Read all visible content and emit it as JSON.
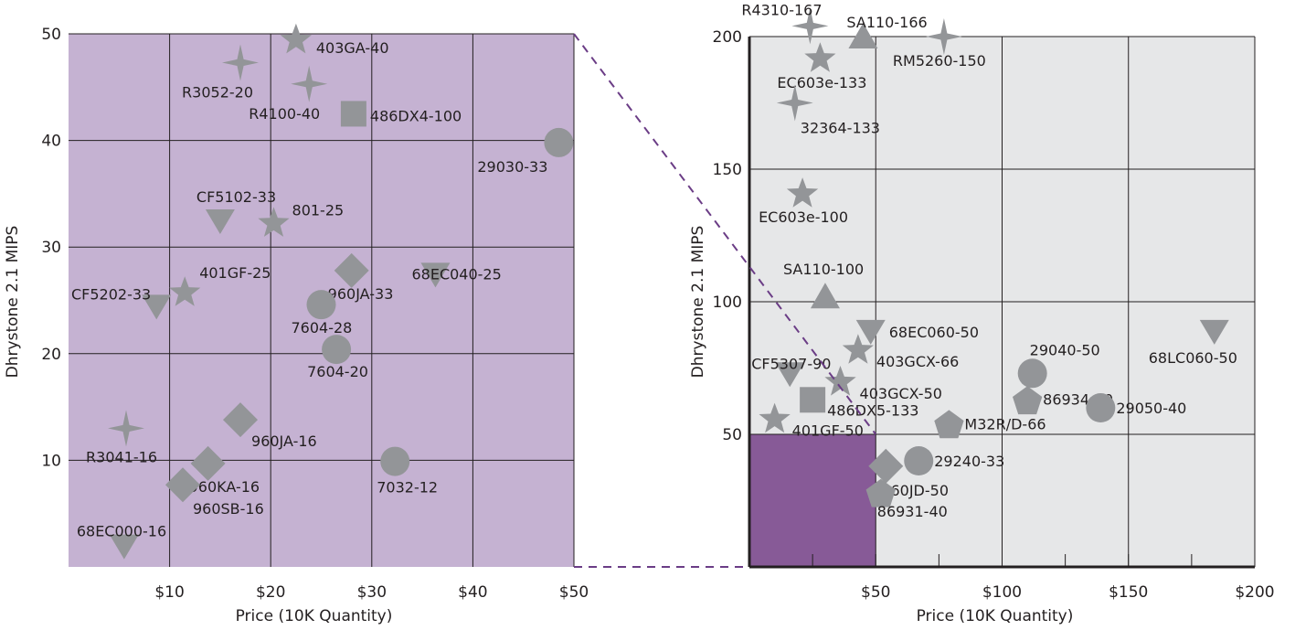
{
  "chart_data": [
    {
      "type": "scatter",
      "xlabel": "Price (10K Quantity)",
      "ylabel": "Dhrystone 2.1 MIPS",
      "xlim": [
        0,
        50
      ],
      "ylim": [
        0,
        50
      ],
      "xticks": [
        {
          "value": 10,
          "label": "$10"
        },
        {
          "value": 20,
          "label": "$20"
        },
        {
          "value": 30,
          "label": "$30"
        },
        {
          "value": 40,
          "label": "$40"
        },
        {
          "value": 50,
          "label": "$50"
        }
      ],
      "yticks": [
        {
          "value": 10,
          "label": "10"
        },
        {
          "value": 20,
          "label": "20"
        },
        {
          "value": 30,
          "label": "30"
        },
        {
          "value": 40,
          "label": "40"
        },
        {
          "value": 50,
          "label": "50"
        }
      ],
      "grid": true,
      "background_color": "#c5b2d2",
      "marker_color": "#939598",
      "points": [
        {
          "label": "403GA-40",
          "x": 22.5,
          "y": 49.5,
          "shape": "star5"
        },
        {
          "label": "R3052-20",
          "x": 17.0,
          "y": 47.3,
          "shape": "star4"
        },
        {
          "label": "R4100-40",
          "x": 23.8,
          "y": 45.3,
          "shape": "star4"
        },
        {
          "label": "486DX4-100",
          "x": 28.2,
          "y": 42.5,
          "shape": "square"
        },
        {
          "label": "29030-33",
          "x": 48.5,
          "y": 39.8,
          "shape": "circle"
        },
        {
          "label": "CF5102-33",
          "x": 15.0,
          "y": 32.5,
          "shape": "tri-down"
        },
        {
          "label": "801-25",
          "x": 20.3,
          "y": 32.3,
          "shape": "star5"
        },
        {
          "label": "401GF-25",
          "x": 11.5,
          "y": 25.8,
          "shape": "star5"
        },
        {
          "label": "CF5202-33",
          "x": 8.7,
          "y": 24.5,
          "shape": "tri-down"
        },
        {
          "label": "960JA-33",
          "x": 28.0,
          "y": 27.8,
          "shape": "diamond"
        },
        {
          "label": "68EC040-25",
          "x": 36.3,
          "y": 27.5,
          "shape": "tri-down"
        },
        {
          "label": "7604-28",
          "x": 25.0,
          "y": 24.6,
          "shape": "circle"
        },
        {
          "label": "7604-20",
          "x": 26.5,
          "y": 20.4,
          "shape": "circle"
        },
        {
          "label": "R3041-16",
          "x": 5.7,
          "y": 13.0,
          "shape": "star4"
        },
        {
          "label": "960JA-16",
          "x": 17.0,
          "y": 13.8,
          "shape": "diamond"
        },
        {
          "label": "960KA-16",
          "x": 13.8,
          "y": 9.7,
          "shape": "diamond"
        },
        {
          "label": "960SB-16",
          "x": 11.3,
          "y": 7.7,
          "shape": "diamond"
        },
        {
          "label": "7032-12",
          "x": 32.3,
          "y": 9.9,
          "shape": "circle"
        },
        {
          "label": "68EC000-16",
          "x": 5.5,
          "y": 2.0,
          "shape": "tri-down"
        }
      ]
    },
    {
      "type": "scatter",
      "xlabel": "Price (10K Quantity)",
      "ylabel": "Dhrystone 2.1 MIPS",
      "xlim": [
        0,
        200
      ],
      "ylim": [
        0,
        200
      ],
      "xticks": [
        {
          "value": 50,
          "label": "$50"
        },
        {
          "value": 100,
          "label": "$100"
        },
        {
          "value": 150,
          "label": "$150"
        },
        {
          "value": 200,
          "label": "$200"
        }
      ],
      "yticks": [
        {
          "value": 50,
          "label": "50"
        },
        {
          "value": 100,
          "label": "100"
        },
        {
          "value": 150,
          "label": "150"
        },
        {
          "value": 200,
          "label": "200"
        }
      ],
      "grid": true,
      "background_color": "#e6e7e8",
      "zoom_region": {
        "x": [
          0,
          50
        ],
        "y": [
          0,
          50
        ],
        "color": "#875a97"
      },
      "marker_color": "#939598",
      "points": [
        {
          "label": "R4310-167",
          "x": 24,
          "y": 204,
          "shape": "star4"
        },
        {
          "label": "SA110-166",
          "x": 45,
          "y": 200,
          "shape": "tri-up"
        },
        {
          "label": "RM5260-150",
          "x": 77,
          "y": 200,
          "shape": "star4"
        },
        {
          "label": "EC603e-133",
          "x": 28,
          "y": 192,
          "shape": "star5"
        },
        {
          "label": "32364-133",
          "x": 18,
          "y": 175,
          "shape": "star4"
        },
        {
          "label": "EC603e-100",
          "x": 21,
          "y": 141,
          "shape": "star5"
        },
        {
          "label": "SA110-100",
          "x": 30,
          "y": 102,
          "shape": "tri-up"
        },
        {
          "label": "68EC060-50",
          "x": 48,
          "y": 89,
          "shape": "tri-down"
        },
        {
          "label": "403GCX-66",
          "x": 43,
          "y": 82,
          "shape": "star5"
        },
        {
          "label": "68LC060-50",
          "x": 184,
          "y": 89,
          "shape": "tri-down"
        },
        {
          "label": "29040-50",
          "x": 112,
          "y": 73,
          "shape": "circle"
        },
        {
          "label": "CF5307-90",
          "x": 16,
          "y": 73,
          "shape": "tri-down"
        },
        {
          "label": "403GCX-50",
          "x": 36,
          "y": 70,
          "shape": "star5"
        },
        {
          "label": "86934-60",
          "x": 110,
          "y": 63,
          "shape": "pentagon"
        },
        {
          "label": "486DX5-133",
          "x": 25,
          "y": 63,
          "shape": "square"
        },
        {
          "label": "29050-40",
          "x": 139,
          "y": 60,
          "shape": "circle"
        },
        {
          "label": "401GF-50",
          "x": 10,
          "y": 56,
          "shape": "star5"
        },
        {
          "label": "M32R/D-66",
          "x": 79,
          "y": 54,
          "shape": "pentagon"
        },
        {
          "label": "29240-33",
          "x": 67,
          "y": 40,
          "shape": "circle"
        },
        {
          "label": "960JD-50",
          "x": 54,
          "y": 38,
          "shape": "diamond"
        },
        {
          "label": "86931-40",
          "x": 52,
          "y": 28,
          "shape": "pentagon"
        }
      ]
    }
  ]
}
